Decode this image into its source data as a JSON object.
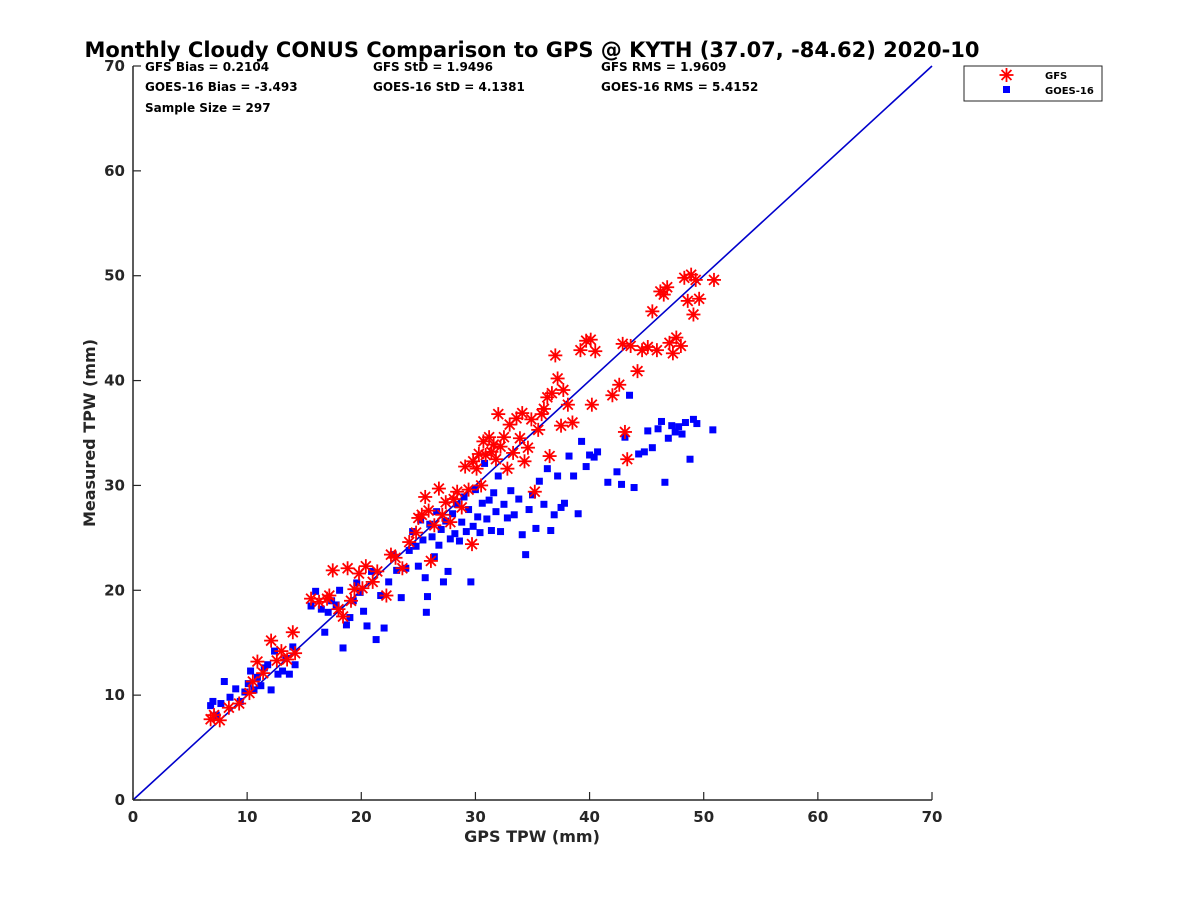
{
  "chart_data": {
    "type": "scatter",
    "title": "Monthly Cloudy CONUS Comparison to GPS @ KYTH (37.07, -84.62) 2020-10",
    "xlabel": "GPS TPW (mm)",
    "ylabel": "Measured TPW (mm)",
    "xlim": [
      0,
      70
    ],
    "ylim": [
      0,
      70
    ],
    "xticks": [
      "0",
      "10",
      "20",
      "30",
      "40",
      "50",
      "60",
      "70"
    ],
    "yticks": [
      "0",
      "10",
      "20",
      "30",
      "40",
      "50",
      "60",
      "70"
    ],
    "grid": false,
    "legend_position": "top-right",
    "stats": [
      "GFS Bias = 0.2104",
      "GFS StD = 1.9496",
      "GFS RMS = 1.9609",
      "GOES-16 Bias = -3.493",
      "GOES-16 StD = 4.1381",
      "GOES-16 RMS = 5.4152",
      "Sample Size = 297"
    ],
    "reference_line": {
      "x": [
        0,
        70
      ],
      "y": [
        0,
        70
      ],
      "color": "#0000cc"
    },
    "series": [
      {
        "name": "GFS",
        "marker": "asterisk",
        "color": "#ff0000",
        "points": [
          [
            6.8,
            7.7
          ],
          [
            7.1,
            8.1
          ],
          [
            7.6,
            7.6
          ],
          [
            8.4,
            8.8
          ],
          [
            9.3,
            9.2
          ],
          [
            10.2,
            10.2
          ],
          [
            10.5,
            11.3
          ],
          [
            10.9,
            13.2
          ],
          [
            11.4,
            12.1
          ],
          [
            12.1,
            15.2
          ],
          [
            12.6,
            13.3
          ],
          [
            13.0,
            14.2
          ],
          [
            13.5,
            13.4
          ],
          [
            14.0,
            16.0
          ],
          [
            14.2,
            14.0
          ],
          [
            15.6,
            19.2
          ],
          [
            16.3,
            18.9
          ],
          [
            17.0,
            19.2
          ],
          [
            17.2,
            19.5
          ],
          [
            17.5,
            21.9
          ],
          [
            18.0,
            18.2
          ],
          [
            18.4,
            17.5
          ],
          [
            18.8,
            22.1
          ],
          [
            19.1,
            19.0
          ],
          [
            19.4,
            20.1
          ],
          [
            19.8,
            21.6
          ],
          [
            20.1,
            20.2
          ],
          [
            20.4,
            22.3
          ],
          [
            21.0,
            20.8
          ],
          [
            21.4,
            21.8
          ],
          [
            22.2,
            19.5
          ],
          [
            22.6,
            23.4
          ],
          [
            23.0,
            23.1
          ],
          [
            23.6,
            22.1
          ],
          [
            24.2,
            24.6
          ],
          [
            24.8,
            25.5
          ],
          [
            25.0,
            26.9
          ],
          [
            25.3,
            27.2
          ],
          [
            25.6,
            28.9
          ],
          [
            25.9,
            27.6
          ],
          [
            26.1,
            22.8
          ],
          [
            26.4,
            26.2
          ],
          [
            26.8,
            29.7
          ],
          [
            27.1,
            27.2
          ],
          [
            27.4,
            28.4
          ],
          [
            27.8,
            26.5
          ],
          [
            28.1,
            28.7
          ],
          [
            28.4,
            29.4
          ],
          [
            28.8,
            27.9
          ],
          [
            29.1,
            31.8
          ],
          [
            29.4,
            29.6
          ],
          [
            29.7,
            24.4
          ],
          [
            29.8,
            32.3
          ],
          [
            30.1,
            31.6
          ],
          [
            30.3,
            33.0
          ],
          [
            30.5,
            30.0
          ],
          [
            30.7,
            34.2
          ],
          [
            30.9,
            32.9
          ],
          [
            31.2,
            34.6
          ],
          [
            31.4,
            33.2
          ],
          [
            31.6,
            33.9
          ],
          [
            31.8,
            32.5
          ],
          [
            32.0,
            36.8
          ],
          [
            32.2,
            33.7
          ],
          [
            32.5,
            34.6
          ],
          [
            32.8,
            31.6
          ],
          [
            33.0,
            35.8
          ],
          [
            33.3,
            33.1
          ],
          [
            33.6,
            36.4
          ],
          [
            33.9,
            34.5
          ],
          [
            34.1,
            36.9
          ],
          [
            34.3,
            32.3
          ],
          [
            34.6,
            33.6
          ],
          [
            34.9,
            36.3
          ],
          [
            35.2,
            29.4
          ],
          [
            35.5,
            35.3
          ],
          [
            35.8,
            36.8
          ],
          [
            36.0,
            37.3
          ],
          [
            36.3,
            38.4
          ],
          [
            36.5,
            32.8
          ],
          [
            36.7,
            38.8
          ],
          [
            37.0,
            42.4
          ],
          [
            37.2,
            40.2
          ],
          [
            37.5,
            35.7
          ],
          [
            37.7,
            39.1
          ],
          [
            38.1,
            37.7
          ],
          [
            38.5,
            36.0
          ],
          [
            39.2,
            42.9
          ],
          [
            39.7,
            43.8
          ],
          [
            40.1,
            43.9
          ],
          [
            40.5,
            42.8
          ],
          [
            40.2,
            37.7
          ],
          [
            42.0,
            38.6
          ],
          [
            42.6,
            39.6
          ],
          [
            42.9,
            43.5
          ],
          [
            43.1,
            35.1
          ],
          [
            43.3,
            32.5
          ],
          [
            43.6,
            43.3
          ],
          [
            44.2,
            40.9
          ],
          [
            44.6,
            42.9
          ],
          [
            45.1,
            43.2
          ],
          [
            45.5,
            46.6
          ],
          [
            45.9,
            42.9
          ],
          [
            46.2,
            48.5
          ],
          [
            46.5,
            48.2
          ],
          [
            46.8,
            48.9
          ],
          [
            47.0,
            43.6
          ],
          [
            47.3,
            42.6
          ],
          [
            47.6,
            44.1
          ],
          [
            48.0,
            43.3
          ],
          [
            48.3,
            49.8
          ],
          [
            48.6,
            47.6
          ],
          [
            48.9,
            50.1
          ],
          [
            49.1,
            46.3
          ],
          [
            49.3,
            49.6
          ],
          [
            49.6,
            47.8
          ],
          [
            50.9,
            49.6
          ]
        ]
      },
      {
        "name": "GOES-16",
        "marker": "square",
        "color": "#0000ff",
        "points": [
          [
            6.8,
            9.0
          ],
          [
            7.0,
            9.4
          ],
          [
            7.3,
            8.1
          ],
          [
            7.7,
            9.2
          ],
          [
            8.0,
            11.3
          ],
          [
            8.5,
            9.8
          ],
          [
            9.0,
            10.6
          ],
          [
            9.4,
            9.4
          ],
          [
            9.8,
            10.3
          ],
          [
            10.1,
            11.1
          ],
          [
            10.3,
            12.3
          ],
          [
            10.6,
            10.5
          ],
          [
            10.9,
            11.7
          ],
          [
            11.2,
            10.9
          ],
          [
            11.5,
            12.6
          ],
          [
            11.8,
            12.9
          ],
          [
            12.1,
            10.5
          ],
          [
            12.4,
            14.2
          ],
          [
            12.7,
            12.0
          ],
          [
            13.1,
            12.3
          ],
          [
            13.4,
            13.5
          ],
          [
            13.7,
            12.0
          ],
          [
            14.0,
            14.6
          ],
          [
            14.2,
            12.9
          ],
          [
            15.6,
            18.5
          ],
          [
            16.0,
            19.9
          ],
          [
            16.5,
            18.2
          ],
          [
            16.8,
            16.0
          ],
          [
            17.1,
            17.9
          ],
          [
            17.4,
            19.0
          ],
          [
            17.8,
            18.6
          ],
          [
            18.1,
            20.0
          ],
          [
            18.4,
            14.5
          ],
          [
            18.7,
            16.7
          ],
          [
            19.0,
            17.4
          ],
          [
            19.3,
            19.0
          ],
          [
            19.6,
            20.7
          ],
          [
            19.9,
            19.8
          ],
          [
            20.2,
            18.0
          ],
          [
            20.5,
            16.6
          ],
          [
            20.9,
            21.8
          ],
          [
            21.3,
            15.3
          ],
          [
            21.7,
            19.5
          ],
          [
            22.0,
            16.4
          ],
          [
            22.4,
            20.8
          ],
          [
            22.8,
            23.4
          ],
          [
            23.1,
            21.9
          ],
          [
            23.5,
            19.3
          ],
          [
            23.9,
            22.1
          ],
          [
            24.2,
            23.8
          ],
          [
            24.5,
            25.6
          ],
          [
            24.8,
            24.2
          ],
          [
            25.0,
            22.3
          ],
          [
            25.2,
            26.7
          ],
          [
            25.4,
            24.8
          ],
          [
            25.6,
            21.2
          ],
          [
            25.7,
            17.9
          ],
          [
            25.8,
            19.4
          ],
          [
            26.0,
            26.3
          ],
          [
            26.2,
            25.1
          ],
          [
            26.4,
            23.2
          ],
          [
            26.6,
            27.5
          ],
          [
            26.8,
            24.3
          ],
          [
            27.0,
            25.8
          ],
          [
            27.2,
            20.8
          ],
          [
            27.4,
            26.6
          ],
          [
            27.6,
            21.8
          ],
          [
            27.8,
            24.9
          ],
          [
            28.0,
            27.3
          ],
          [
            28.2,
            25.4
          ],
          [
            28.4,
            28.2
          ],
          [
            28.6,
            24.7
          ],
          [
            28.8,
            26.5
          ],
          [
            29.0,
            28.9
          ],
          [
            29.2,
            25.6
          ],
          [
            29.4,
            27.7
          ],
          [
            29.6,
            20.8
          ],
          [
            29.8,
            26.1
          ],
          [
            30.0,
            29.6
          ],
          [
            30.2,
            27.0
          ],
          [
            30.4,
            25.5
          ],
          [
            30.6,
            28.3
          ],
          [
            30.8,
            32.1
          ],
          [
            31.0,
            26.8
          ],
          [
            31.2,
            28.6
          ],
          [
            31.4,
            25.7
          ],
          [
            31.6,
            29.3
          ],
          [
            31.8,
            27.5
          ],
          [
            32.0,
            30.9
          ],
          [
            32.2,
            25.6
          ],
          [
            32.5,
            28.2
          ],
          [
            32.8,
            26.9
          ],
          [
            33.1,
            29.5
          ],
          [
            33.4,
            27.2
          ],
          [
            33.8,
            28.7
          ],
          [
            34.1,
            25.3
          ],
          [
            34.4,
            23.4
          ],
          [
            34.7,
            27.7
          ],
          [
            35.0,
            29.1
          ],
          [
            35.3,
            25.9
          ],
          [
            35.6,
            30.4
          ],
          [
            36.0,
            28.2
          ],
          [
            36.3,
            31.6
          ],
          [
            36.6,
            25.7
          ],
          [
            36.9,
            27.2
          ],
          [
            37.2,
            30.9
          ],
          [
            37.5,
            27.9
          ],
          [
            37.8,
            28.3
          ],
          [
            38.2,
            32.8
          ],
          [
            38.6,
            30.9
          ],
          [
            39.0,
            27.3
          ],
          [
            39.3,
            34.2
          ],
          [
            39.7,
            31.8
          ],
          [
            40.0,
            32.9
          ],
          [
            40.4,
            32.7
          ],
          [
            40.7,
            33.2
          ],
          [
            41.6,
            30.3
          ],
          [
            42.4,
            31.3
          ],
          [
            42.8,
            30.1
          ],
          [
            43.1,
            34.6
          ],
          [
            43.5,
            38.6
          ],
          [
            43.9,
            29.8
          ],
          [
            44.3,
            33.0
          ],
          [
            44.8,
            33.2
          ],
          [
            45.1,
            35.2
          ],
          [
            45.5,
            33.6
          ],
          [
            46.0,
            35.4
          ],
          [
            46.3,
            36.1
          ],
          [
            46.6,
            30.3
          ],
          [
            46.9,
            34.5
          ],
          [
            47.2,
            35.7
          ],
          [
            47.5,
            35.1
          ],
          [
            47.8,
            35.6
          ],
          [
            48.1,
            34.9
          ],
          [
            48.4,
            36.0
          ],
          [
            48.8,
            32.5
          ],
          [
            49.1,
            36.3
          ],
          [
            49.4,
            35.9
          ],
          [
            50.8,
            35.3
          ]
        ]
      }
    ]
  }
}
